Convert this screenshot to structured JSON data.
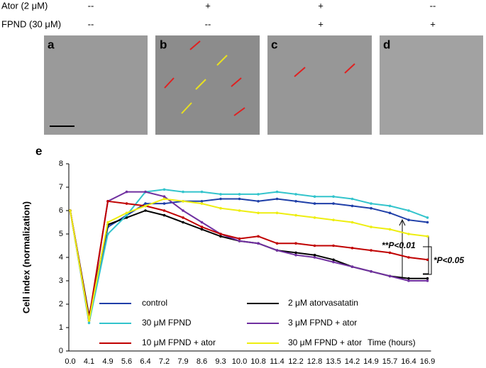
{
  "header": {
    "rows": [
      {
        "label": "Ator (2 μM)",
        "cells": [
          "--",
          "+",
          "+",
          "--"
        ]
      },
      {
        "label": "FPND (30 μM)",
        "cells": [
          "--",
          "--",
          "+",
          "+"
        ]
      }
    ]
  },
  "panels": [
    "a",
    "b",
    "c",
    "d",
    "e"
  ],
  "chart_data": {
    "type": "line",
    "y_label": "Cell index (normalization)",
    "x_label": "Time (hours)",
    "annotations": [
      "**P<0.01",
      "*P<0.05"
    ],
    "categories": [
      "0.0",
      "4.1",
      "4.9",
      "5.6",
      "6.4",
      "7.2",
      "7.9",
      "8.6",
      "9.3",
      "10.0",
      "10.8",
      "11.4",
      "12.2",
      "12.8",
      "13.5",
      "14.2",
      "14.9",
      "15.7",
      "16.4",
      "16.9"
    ],
    "ylim": [
      0,
      8
    ],
    "yticks": [
      0,
      1,
      2,
      3,
      4,
      5,
      6,
      7,
      8
    ],
    "series": [
      {
        "name": "control",
        "color": "#1f3fa8",
        "values": [
          6.0,
          1.3,
          5.3,
          5.8,
          6.3,
          6.3,
          6.4,
          6.4,
          6.5,
          6.5,
          6.4,
          6.5,
          6.4,
          6.3,
          6.3,
          6.2,
          6.1,
          5.9,
          5.6,
          5.5
        ]
      },
      {
        "name": "2 μM atorvasatatin",
        "color": "#000000",
        "values": [
          6.0,
          1.5,
          5.4,
          5.7,
          6.0,
          5.8,
          5.5,
          5.2,
          4.9,
          4.7,
          4.6,
          4.3,
          4.2,
          4.1,
          3.9,
          3.6,
          3.4,
          3.2,
          3.1,
          3.1
        ]
      },
      {
        "name": "30 μM FPND",
        "color": "#33c4cc",
        "values": [
          6.0,
          1.2,
          5.0,
          5.8,
          6.8,
          6.9,
          6.8,
          6.8,
          6.7,
          6.7,
          6.7,
          6.8,
          6.7,
          6.6,
          6.6,
          6.5,
          6.3,
          6.2,
          6.0,
          5.7
        ]
      },
      {
        "name": "3 μM FPND + ator",
        "color": "#7030a0",
        "values": [
          6.0,
          1.3,
          6.4,
          6.8,
          6.8,
          6.6,
          6.0,
          5.5,
          5.0,
          4.7,
          4.6,
          4.3,
          4.1,
          4.0,
          3.8,
          3.6,
          3.4,
          3.2,
          3.0,
          3.0
        ]
      },
      {
        "name": "10 μM FPND + ator",
        "color": "#c00000",
        "values": [
          6.0,
          1.4,
          6.4,
          6.3,
          6.2,
          6.0,
          5.7,
          5.3,
          5.0,
          4.8,
          4.9,
          4.6,
          4.6,
          4.5,
          4.5,
          4.4,
          4.3,
          4.2,
          4.0,
          3.9
        ]
      },
      {
        "name": "30 μM FPND + ator",
        "color": "#eeee10",
        "values": [
          6.0,
          1.3,
          5.5,
          5.9,
          6.2,
          6.5,
          6.4,
          6.3,
          6.1,
          6.0,
          5.9,
          5.9,
          5.8,
          5.7,
          5.6,
          5.5,
          5.3,
          5.2,
          5.0,
          4.9
        ]
      }
    ]
  }
}
